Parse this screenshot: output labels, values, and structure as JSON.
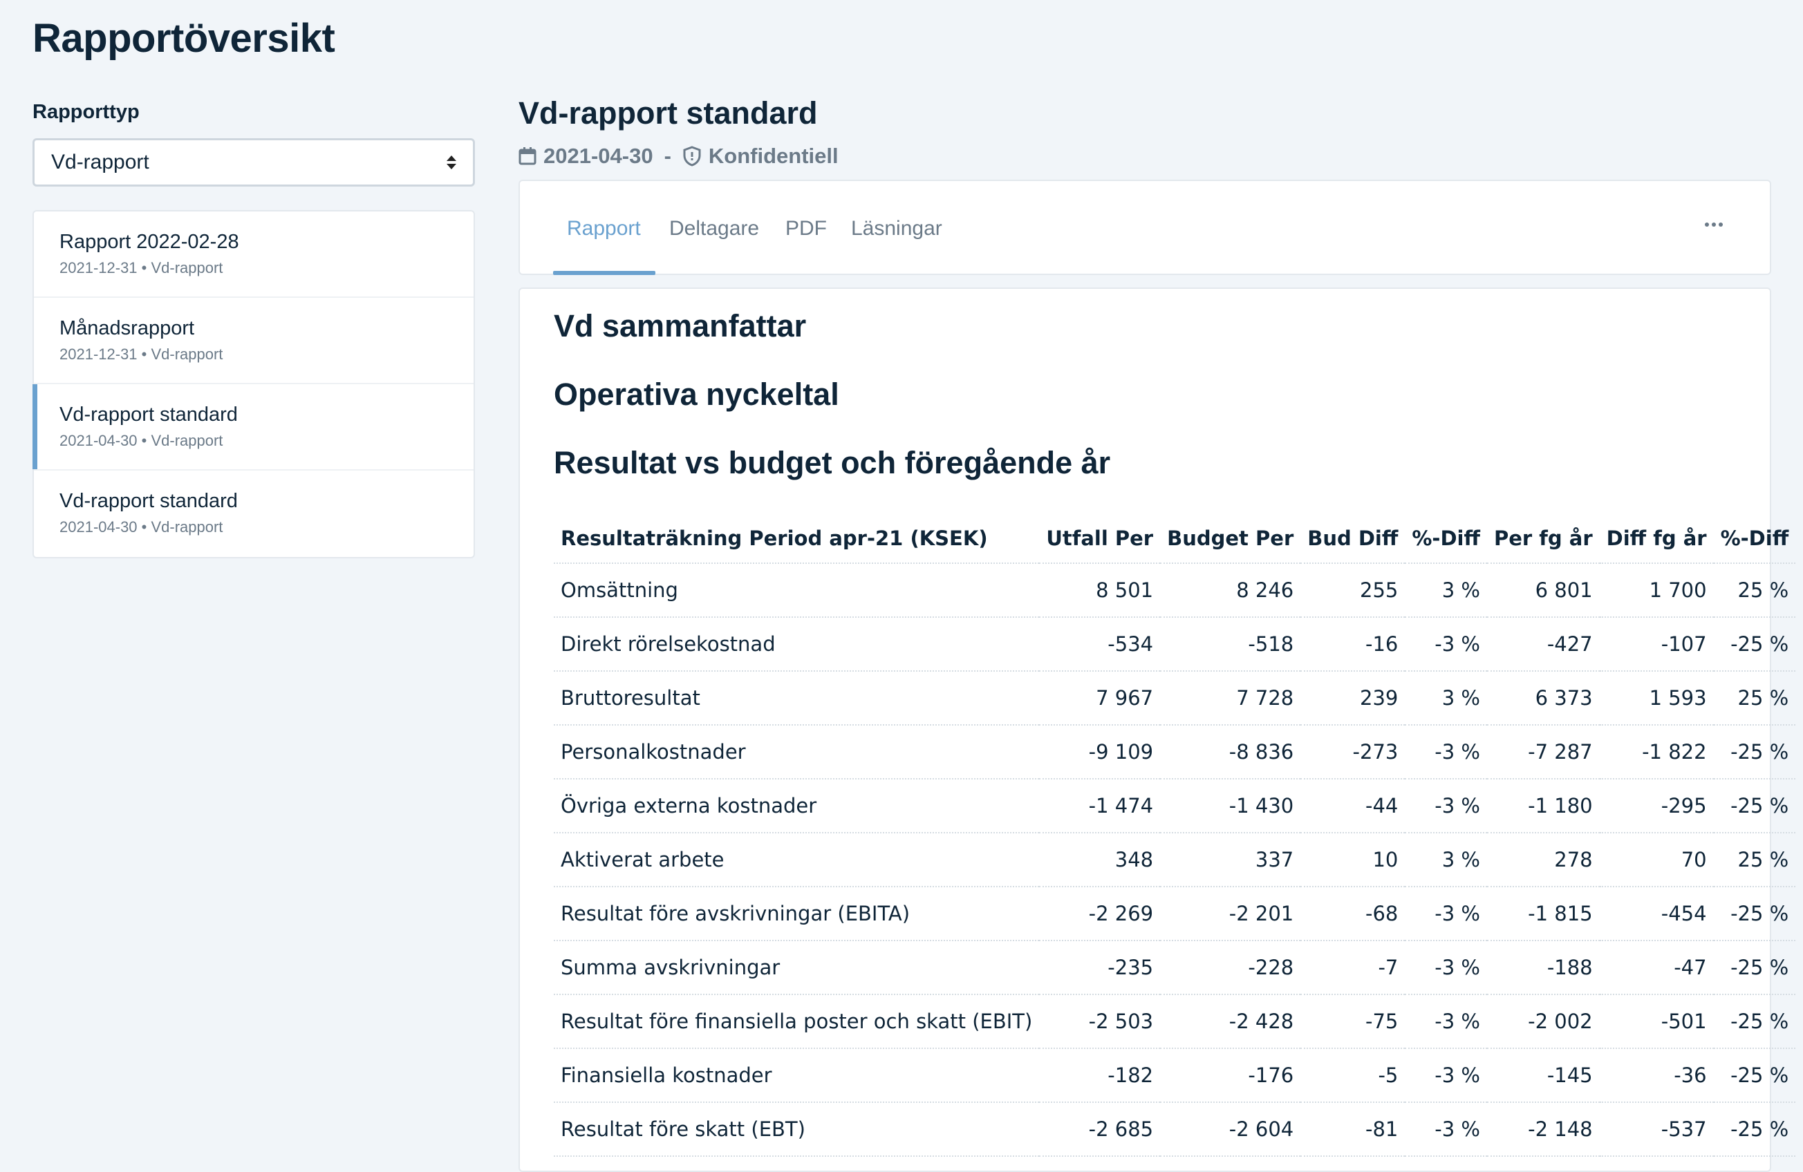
{
  "page": {
    "title": "Rapportöversikt"
  },
  "sidebar": {
    "type_label": "Rapporttyp",
    "type_value": "Vd-rapport",
    "items": [
      {
        "title": "Rapport 2022-02-28",
        "meta": "2021-12-31 • Vd-rapport"
      },
      {
        "title": "Månadsrapport",
        "meta": "2021-12-31 • Vd-rapport"
      },
      {
        "title": "Vd-rapport standard",
        "meta": "2021-04-30 • Vd-rapport",
        "active": true
      },
      {
        "title": "Vd-rapport standard",
        "meta": "2021-04-30 • Vd-rapport"
      }
    ]
  },
  "detail": {
    "title": "Vd-rapport standard",
    "date": "2021-04-30",
    "separator": "-",
    "confidentiality": "Konfidentiell",
    "tabs": [
      "Rapport",
      "Deltagare",
      "PDF",
      "Läsningar"
    ],
    "active_tab": "Rapport"
  },
  "content": {
    "heading_1": "Vd sammanfattar",
    "heading_2": "Operativa nyckeltal",
    "heading_3": "Resultat vs budget och föregående år"
  },
  "table": {
    "columns": [
      "Resultaträkning Period apr-21 (KSEK)",
      "Utfall Per",
      "Budget Per",
      "Bud Diff",
      "%-Diff",
      "Per fg år",
      "Diff fg år",
      "%-Diff"
    ],
    "rows": [
      [
        "Omsättning",
        "8 501",
        "8 246",
        "255",
        "3 %",
        "6 801",
        "1 700",
        "25 %"
      ],
      [
        "Direkt rörelsekostnad",
        "-534",
        "-518",
        "-16",
        "-3 %",
        "-427",
        "-107",
        "-25 %"
      ],
      [
        "Bruttoresultat",
        "7 967",
        "7 728",
        "239",
        "3 %",
        "6 373",
        "1 593",
        "25 %"
      ],
      [
        "Personalkostnader",
        "-9 109",
        "-8 836",
        "-273",
        "-3 %",
        "-7 287",
        "-1 822",
        "-25 %"
      ],
      [
        "Övriga externa kostnader",
        "-1 474",
        "-1 430",
        "-44",
        "-3 %",
        "-1 180",
        "-295",
        "-25 %"
      ],
      [
        "Aktiverat arbete",
        "348",
        "337",
        "10",
        "3 %",
        "278",
        "70",
        "25 %"
      ],
      [
        "Resultat före avskrivningar (EBITA)",
        "-2 269",
        "-2 201",
        "-68",
        "-3 %",
        "-1 815",
        "-454",
        "-25 %"
      ],
      [
        "Summa avskrivningar",
        "-235",
        "-228",
        "-7",
        "-3 %",
        "-188",
        "-47",
        "-25 %"
      ],
      [
        "Resultat före finansiella poster och skatt (EBIT)",
        "-2 503",
        "-2 428",
        "-75",
        "-3 %",
        "-2 002",
        "-501",
        "-25 %"
      ],
      [
        "Finansiella kostnader",
        "-182",
        "-176",
        "-5",
        "-3 %",
        "-145",
        "-36",
        "-25 %"
      ],
      [
        "Resultat före skatt (EBT)",
        "-2 685",
        "-2 604",
        "-81",
        "-3 %",
        "-2 148",
        "-537",
        "-25 %"
      ]
    ]
  },
  "colors": {
    "accent": "#6aa1cf",
    "text": "#0f2538",
    "muted": "#6b7a88",
    "background": "#f1f5f9"
  }
}
